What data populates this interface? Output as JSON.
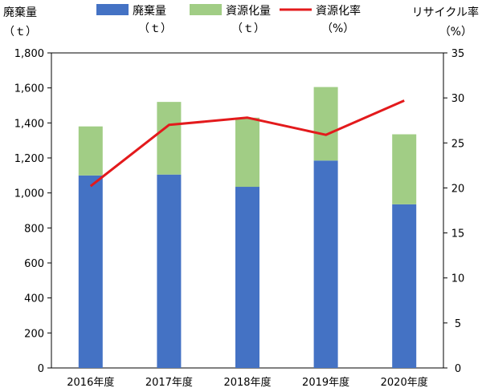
{
  "chart_data": {
    "type": "bar",
    "categories": [
      "2016年度",
      "2017年度",
      "2018年度",
      "2019年度",
      "2020年度"
    ],
    "series": [
      {
        "name": "廃棄量",
        "unit": "（ｔ）",
        "values": [
          1100,
          1105,
          1035,
          1185,
          935
        ],
        "color": "#4472c4",
        "kind": "bar-stacked"
      },
      {
        "name": "資源化量",
        "unit": "（ｔ）",
        "values": [
          280,
          415,
          395,
          420,
          400
        ],
        "color": "#a1cd85",
        "kind": "bar-stacked"
      },
      {
        "name": "資源化率",
        "unit": "（%）",
        "values": [
          20.2,
          27.0,
          27.8,
          25.9,
          29.7
        ],
        "color": "#e31a1c",
        "kind": "line",
        "axis": "right"
      }
    ],
    "left_axis": {
      "title": "廃棄量",
      "unit": "（ｔ）",
      "ylim": [
        0,
        1800
      ],
      "ticks": [
        "0",
        "200",
        "400",
        "600",
        "800",
        "1,000",
        "1,200",
        "1,400",
        "1,600",
        "1,800"
      ]
    },
    "right_axis": {
      "title": "リサイクル率",
      "unit": "（%）",
      "ylim": [
        0,
        35
      ],
      "ticks": [
        "0",
        "5",
        "10",
        "15",
        "20",
        "25",
        "30",
        "35"
      ]
    },
    "grid": "none",
    "legend": "top"
  }
}
